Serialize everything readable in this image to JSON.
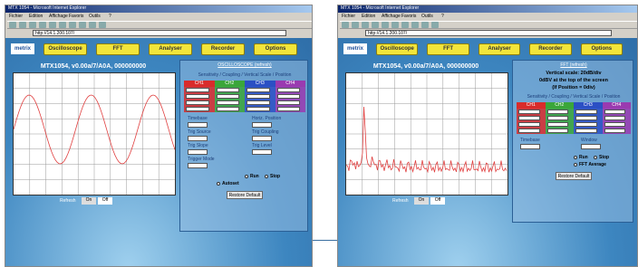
{
  "windows": [
    {
      "browser_title": "MTX 1054 - Microsoft Internet Explorer",
      "menu": [
        "Fichier",
        "Edition",
        "Affichage",
        "Favoris",
        "Outils",
        "?"
      ],
      "address": "http://14.1.200.107/",
      "tabs": [
        "Oscilloscope",
        "FFT",
        "Analyser",
        "Recorder",
        "Options"
      ],
      "logo": "metrix",
      "scope_title": "MTX1054, v0.00a/7/A0A, 000000000",
      "panel_title": "OSCILLOSCOPE (refresh)",
      "panel_lines": [],
      "panel_subtitle": "Sensitivity / Coupling / Vertical Scale / Position",
      "channels": [
        "CH1",
        "CH2",
        "CH3",
        "CH4"
      ],
      "fields": [
        "Timebase",
        "Horiz. Position",
        "Trig Source",
        "Trig Coupling",
        "Trig Slope",
        "Trig Level",
        "Trigger Mode"
      ],
      "options": [
        "Run",
        "Stop",
        "Autoset"
      ],
      "button": "Restore Default",
      "refresh": [
        "Refresh",
        "On",
        "Off"
      ]
    },
    {
      "browser_title": "MTX 1054 - Microsoft Internet Explorer",
      "menu": [
        "Fichier",
        "Edition",
        "Affichage",
        "Favoris",
        "Outils",
        "?"
      ],
      "address": "http://14.1.200.107/",
      "tabs": [
        "Oscilloscope",
        "FFT",
        "Analyser",
        "Recorder",
        "Options"
      ],
      "logo": "metrix",
      "scope_title": "MTX1054, v0.00a/7/A0A, 000000000",
      "panel_title": "FFT (refresh)",
      "panel_lines": [
        "Vertical scale: 20dB/div",
        "0dBV at the top of the screen",
        "(If Position = 0div)"
      ],
      "panel_subtitle": "Sensitivity / Coupling / Vertical Scale / Position",
      "channels": [
        "CH1",
        "CH2",
        "CH3",
        "CH4"
      ],
      "fields": [
        "Timebase",
        "Window"
      ],
      "options": [
        "Run",
        "Stop",
        "FFT Average"
      ],
      "button": "Restore Default",
      "refresh": [
        "Refresh",
        "On",
        "Off"
      ]
    }
  ]
}
